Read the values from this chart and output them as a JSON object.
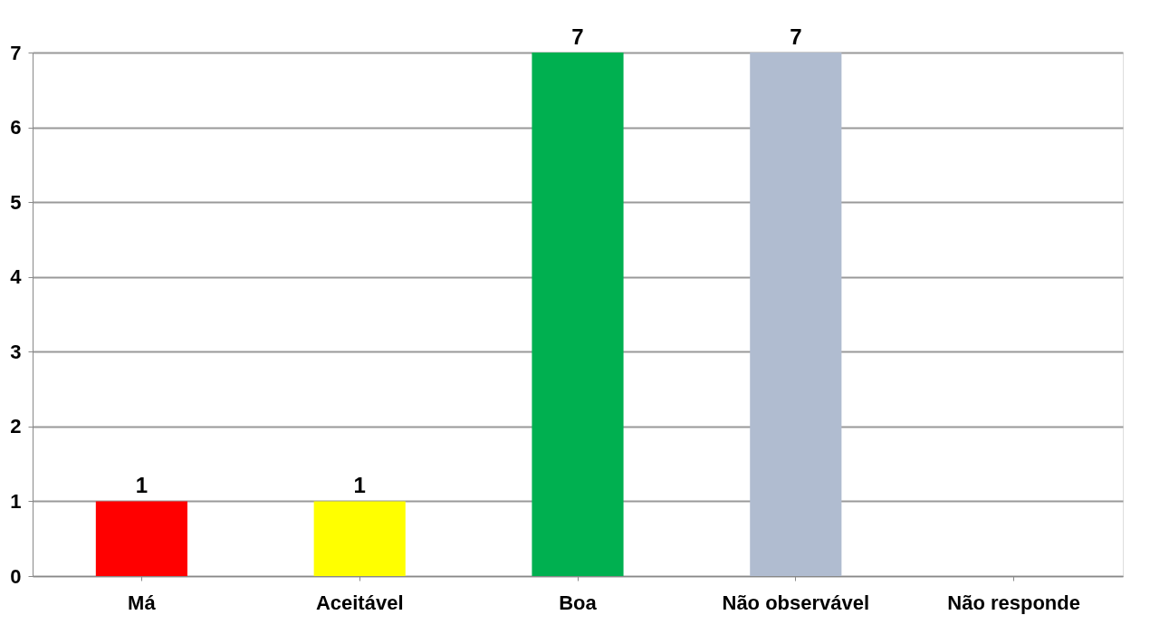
{
  "chart_data": {
    "type": "bar",
    "categories": [
      "Má",
      "Aceitável",
      "Boa",
      "Não observável",
      "Não responde"
    ],
    "values": [
      1,
      1,
      7,
      7,
      null
    ],
    "colors": [
      "#ff0000",
      "#ffff00",
      "#00b050",
      "#b0bcd0",
      "#808080"
    ],
    "ylim": [
      0,
      7
    ],
    "yticks": [
      0,
      1,
      2,
      3,
      4,
      5,
      6,
      7
    ],
    "grid": "y",
    "data_labels": true
  }
}
